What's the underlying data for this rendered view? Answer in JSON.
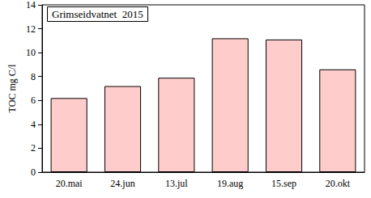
{
  "chart_data": {
    "type": "bar",
    "title": "Grimseidvatnet  2015",
    "y_label": "TOC mg C/l",
    "categories": [
      "20.mai",
      "24.jun",
      "13.jul",
      "19.aug",
      "15.sep",
      "20.okt"
    ],
    "values": [
      6.2,
      7.2,
      7.9,
      11.2,
      11.1,
      8.6
    ],
    "color": "#ffcccc",
    "ylim": [
      0,
      14
    ],
    "yticks": [
      0,
      2,
      4,
      6,
      8,
      10,
      12,
      14
    ],
    "grid": false
  }
}
